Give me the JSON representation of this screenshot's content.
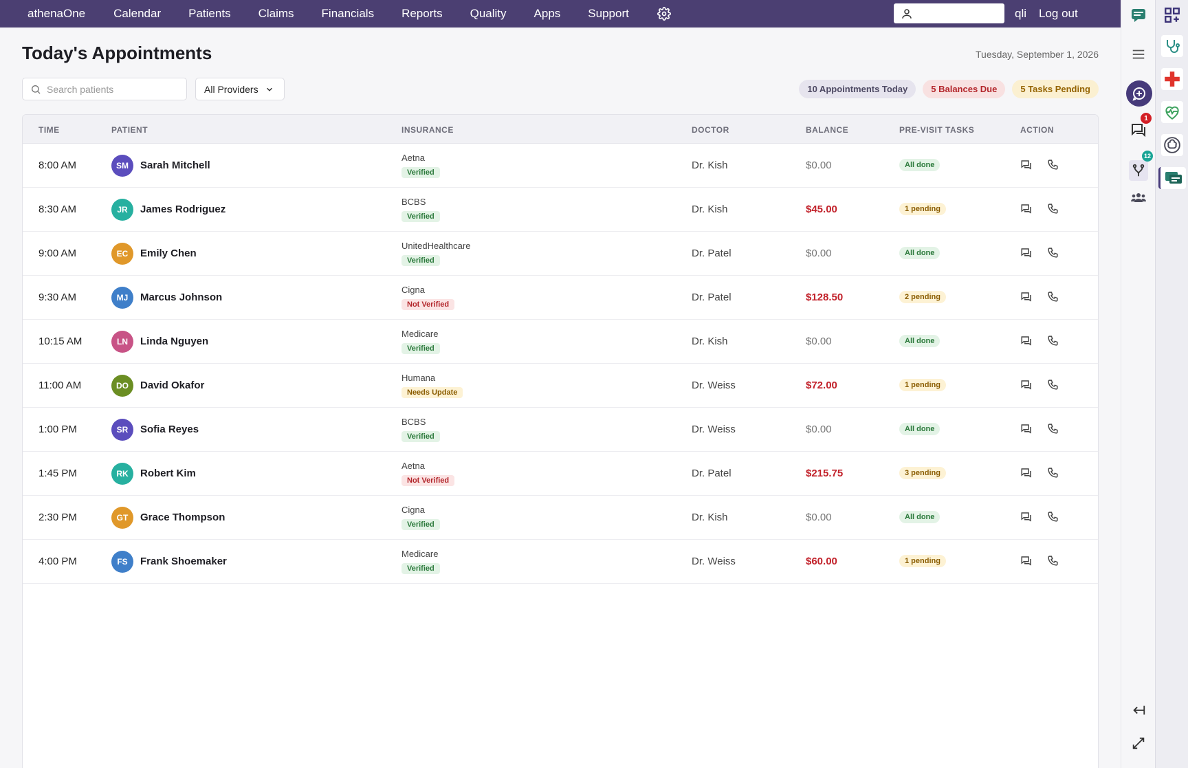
{
  "topnav": {
    "brand": "athenaOne",
    "links": [
      "Calendar",
      "Patients",
      "Claims",
      "Financials",
      "Reports",
      "Quality",
      "Apps",
      "Support"
    ],
    "username": "qli",
    "logout": "Log out",
    "search_value": ""
  },
  "page": {
    "title": "Today's Appointments",
    "date": "Tuesday, September 1, 2026"
  },
  "filters": {
    "search_placeholder": "Search patients",
    "provider": "All Providers"
  },
  "summary": {
    "appointments": "10 Appointments Today",
    "balances": "5 Balances Due",
    "tasks": "5 Tasks Pending"
  },
  "table": {
    "headers": {
      "time": "TIME",
      "patient": "PATIENT",
      "insurance": "INSURANCE",
      "doctor": "DOCTOR",
      "balance": "BALANCE",
      "tasks": "PRE-VISIT TASKS",
      "action": "ACTION"
    },
    "rows": [
      {
        "time": "8:00 AM",
        "initials": "SM",
        "name": "Sarah Mitchell",
        "insurance": "Aetna",
        "status": "Verified",
        "doctor": "Dr. Kish",
        "balance": "$0.00",
        "tasks": "All done"
      },
      {
        "time": "8:30 AM",
        "initials": "JR",
        "name": "James Rodriguez",
        "insurance": "BCBS",
        "status": "Verified",
        "doctor": "Dr. Kish",
        "balance": "$45.00",
        "tasks": "1 pending"
      },
      {
        "time": "9:00 AM",
        "initials": "EC",
        "name": "Emily Chen",
        "insurance": "UnitedHealthcare",
        "status": "Verified",
        "doctor": "Dr. Patel",
        "balance": "$0.00",
        "tasks": "All done"
      },
      {
        "time": "9:30 AM",
        "initials": "MJ",
        "name": "Marcus Johnson",
        "insurance": "Cigna",
        "status": "Not Verified",
        "doctor": "Dr. Patel",
        "balance": "$128.50",
        "tasks": "2 pending"
      },
      {
        "time": "10:15 AM",
        "initials": "LN",
        "name": "Linda Nguyen",
        "insurance": "Medicare",
        "status": "Verified",
        "doctor": "Dr. Kish",
        "balance": "$0.00",
        "tasks": "All done"
      },
      {
        "time": "11:00 AM",
        "initials": "DO",
        "name": "David Okafor",
        "insurance": "Humana",
        "status": "Needs Update",
        "doctor": "Dr. Weiss",
        "balance": "$72.00",
        "tasks": "1 pending"
      },
      {
        "time": "1:00 PM",
        "initials": "SR",
        "name": "Sofia Reyes",
        "insurance": "BCBS",
        "status": "Verified",
        "doctor": "Dr. Weiss",
        "balance": "$0.00",
        "tasks": "All done"
      },
      {
        "time": "1:45 PM",
        "initials": "RK",
        "name": "Robert Kim",
        "insurance": "Aetna",
        "status": "Not Verified",
        "doctor": "Dr. Patel",
        "balance": "$215.75",
        "tasks": "3 pending"
      },
      {
        "time": "2:30 PM",
        "initials": "GT",
        "name": "Grace Thompson",
        "insurance": "Cigna",
        "status": "Verified",
        "doctor": "Dr. Kish",
        "balance": "$0.00",
        "tasks": "All done"
      },
      {
        "time": "4:00 PM",
        "initials": "FS",
        "name": "Frank Shoemaker",
        "insurance": "Medicare",
        "status": "Verified",
        "doctor": "Dr. Weiss",
        "balance": "$60.00",
        "tasks": "1 pending"
      }
    ]
  },
  "avatar_colors": [
    "#5b4dbd",
    "#27b0a0",
    "#e0982a",
    "#3f7fc9",
    "#c85386",
    "#6b8e23",
    "#5b4dbd",
    "#27b0a0",
    "#e0982a",
    "#3f7fc9"
  ],
  "sidebar1": {
    "icons": [
      "chat-app-icon",
      "hamburger-menu-icon",
      "add-comment-icon",
      "messages-icon",
      "fork-icon",
      "team-icon",
      "collapse-left-icon",
      "expand-icon"
    ],
    "messages_badge": "1",
    "fork_badge": "12"
  },
  "sidebar2": {
    "icons": [
      "apps-grid-icon",
      "stethoscope-icon",
      "medical-cross-icon",
      "heart-monitor-icon",
      "brain-icon",
      "chat-bubbles-icon"
    ]
  },
  "colors": {
    "nav": "#4b3f72",
    "accent": "#4b3f72",
    "balance_due": "#c2222b"
  }
}
